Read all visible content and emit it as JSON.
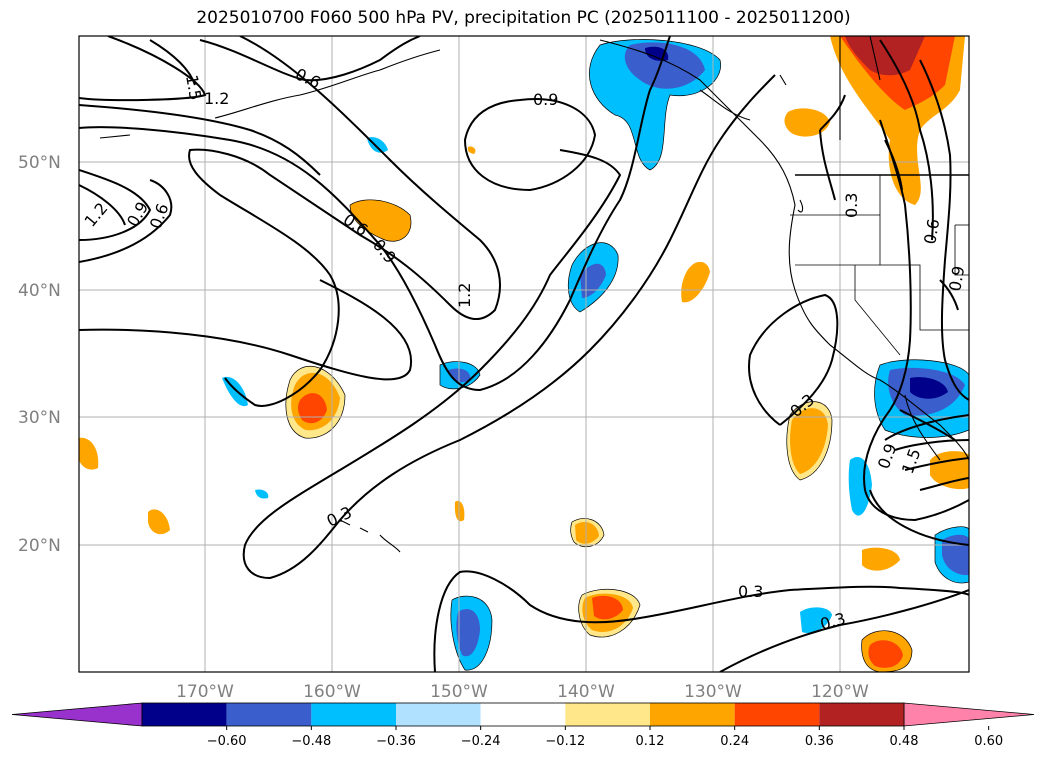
{
  "title": "2025010700 F060 500 hPa PV, precipitation PC (2025011100 - 2025011200)",
  "map": {
    "lat_labels": [
      "50°N",
      "40°N",
      "30°N",
      "20°N"
    ],
    "lon_labels": [
      "170°W",
      "160°W",
      "150°W",
      "140°W",
      "130°W",
      "120°W"
    ],
    "pv_contour_labels": [
      "1.5",
      "1.2",
      "0.6",
      "0.9",
      "1.2",
      "0.9",
      "0.6",
      "0.6",
      "0.9",
      "1.2",
      "0.3",
      "0.3",
      "0.3",
      "0.3",
      "0.3",
      "0.6",
      "0.9",
      "0.9",
      "1.5"
    ]
  },
  "colorbar": {
    "ticks": [
      "−0.60",
      "−0.48",
      "−0.36",
      "−0.24",
      "−0.12",
      "0.12",
      "0.24",
      "0.36",
      "0.48",
      "0.60"
    ],
    "colors": [
      "#9932cc",
      "#00008b",
      "#3a5fcd",
      "#00bfff",
      "#b0e2ff",
      "#ffffff",
      "#ffe78a",
      "#ffa500",
      "#ff4500",
      "#b22222",
      "#ff82ab"
    ]
  }
}
